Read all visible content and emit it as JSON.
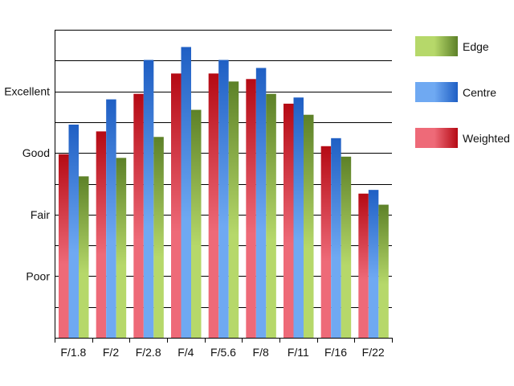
{
  "chart_data": {
    "type": "bar",
    "title": "",
    "xlabel": "",
    "ylabel": "",
    "categories": [
      "F/1.8",
      "F/2",
      "F/2.8",
      "F/4",
      "F/5.6",
      "F/8",
      "F/11",
      "F/16",
      "F/22"
    ],
    "y_tick_labels": [
      "Poor",
      "Fair",
      "Good",
      "Excellent"
    ],
    "y_tick_values": [
      1,
      2,
      3,
      4
    ],
    "ylim": [
      0,
      5
    ],
    "grid": true,
    "legend_position": "right",
    "series": [
      {
        "name": "Weighted",
        "values": [
          2.98,
          3.35,
          3.96,
          4.29,
          4.29,
          4.2,
          3.8,
          3.11,
          2.34
        ],
        "color_light": "#ee6a78",
        "color_dark": "#b50a14"
      },
      {
        "name": "Centre",
        "values": [
          3.46,
          3.87,
          4.51,
          4.72,
          4.51,
          4.38,
          3.9,
          3.24,
          2.4
        ],
        "color_light": "#6fa9f2",
        "color_dark": "#1f5fc4"
      },
      {
        "name": "Edge",
        "values": [
          2.62,
          2.92,
          3.26,
          3.7,
          4.16,
          3.96,
          3.62,
          2.94,
          2.16
        ],
        "color_light": "#b6d86a",
        "color_dark": "#5d8128"
      }
    ],
    "legend_order": [
      "Edge",
      "Centre",
      "Weighted"
    ]
  }
}
